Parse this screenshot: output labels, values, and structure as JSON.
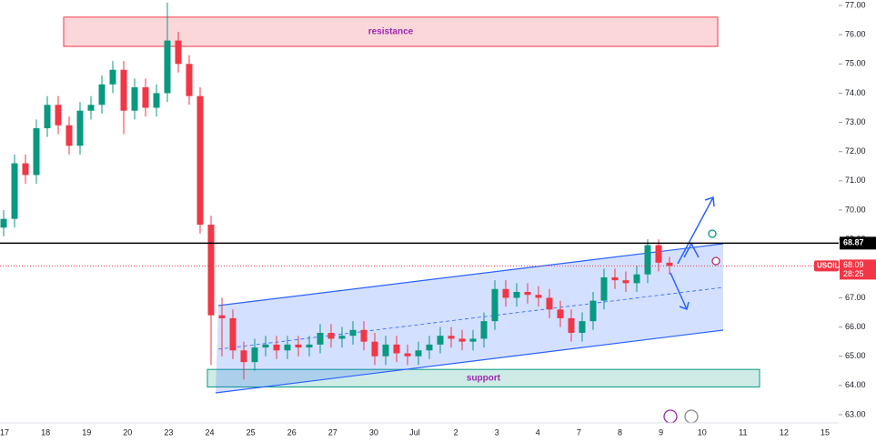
{
  "chart_data": {
    "type": "candlestick",
    "symbol": "USOIL",
    "countdown": "28:25",
    "categories": [
      "17",
      "18",
      "19",
      "20",
      "23",
      "24",
      "25",
      "26",
      "27",
      "30",
      "Jul",
      "2",
      "3",
      "4",
      "7",
      "8",
      "9",
      "10",
      "11",
      "12",
      "15"
    ],
    "ylim": [
      63,
      77
    ],
    "yticks": [
      {
        "value": 63,
        "label": "63.00"
      },
      {
        "value": 64,
        "label": "64.00"
      },
      {
        "value": 65,
        "label": "65.00"
      },
      {
        "value": 66,
        "label": "66.00"
      },
      {
        "value": 67,
        "label": "67.00"
      },
      {
        "value": 68,
        "label": "68.00"
      },
      {
        "value": 69,
        "label": "69.00"
      },
      {
        "value": 70,
        "label": "70.00"
      },
      {
        "value": 71,
        "label": "71.00"
      },
      {
        "value": 72,
        "label": "72.00"
      },
      {
        "value": 73,
        "label": "73.00"
      },
      {
        "value": 74,
        "label": "74.00"
      },
      {
        "value": 75,
        "label": "75.00"
      },
      {
        "value": 76,
        "label": "76.00"
      },
      {
        "value": 77,
        "label": "77.00"
      }
    ],
    "up_color": "#089981",
    "down_color": "#f23645",
    "open": [
      69.4,
      69.7,
      71.6,
      71.2,
      72.8,
      73.6,
      72.9,
      72.2,
      73.4,
      73.6,
      74.3,
      74.8,
      73.4,
      74.2,
      73.5,
      74.0,
      75.8,
      75.0,
      73.9,
      69.5,
      66.4,
      66.3,
      65.2,
      64.8,
      65.3,
      65.4,
      65.2,
      65.4,
      65.3,
      65.4,
      65.8,
      65.6,
      65.7,
      65.9,
      65.5,
      65.0,
      65.4,
      65.1,
      65.0,
      65.2,
      65.4,
      65.7,
      65.6,
      65.5,
      65.6,
      66.2,
      67.3,
      67.0,
      67.2,
      67.1,
      67.0,
      66.6,
      66.3,
      65.8,
      66.2,
      66.9,
      67.7,
      67.6,
      67.5,
      67.8,
      68.8,
      68.2
    ],
    "high": [
      70.0,
      71.9,
      71.9,
      73.1,
      73.9,
      73.9,
      73.2,
      73.7,
      73.9,
      74.6,
      75.1,
      75.1,
      74.5,
      74.5,
      74.3,
      77.1,
      76.1,
      75.3,
      74.2,
      69.8,
      67.0,
      66.6,
      65.5,
      65.6,
      65.7,
      65.7,
      65.7,
      65.7,
      65.7,
      66.1,
      66.1,
      66.0,
      66.2,
      66.2,
      65.8,
      65.7,
      65.7,
      65.4,
      65.5,
      65.7,
      66.0,
      66.0,
      65.9,
      65.9,
      66.5,
      67.6,
      67.6,
      67.5,
      67.5,
      67.4,
      67.3,
      66.9,
      66.6,
      66.5,
      67.2,
      68.0,
      68.0,
      67.9,
      68.1,
      69.0,
      69.0,
      68.4
    ],
    "low": [
      69.1,
      69.4,
      70.9,
      70.9,
      72.5,
      72.6,
      71.9,
      71.9,
      73.1,
      73.3,
      74.0,
      72.6,
      73.1,
      73.2,
      73.2,
      73.7,
      74.7,
      73.6,
      69.2,
      64.7,
      65.0,
      64.9,
      64.2,
      64.5,
      65.0,
      64.9,
      64.9,
      65.0,
      65.0,
      65.1,
      65.3,
      65.3,
      65.4,
      65.2,
      64.7,
      64.7,
      64.8,
      64.7,
      64.7,
      64.9,
      65.1,
      65.3,
      65.2,
      65.2,
      65.3,
      65.9,
      66.7,
      66.7,
      66.8,
      66.7,
      66.3,
      66.0,
      65.5,
      65.5,
      65.9,
      66.6,
      67.3,
      67.2,
      67.2,
      67.5,
      67.9,
      67.8
    ],
    "close": [
      69.7,
      71.6,
      71.2,
      72.8,
      73.6,
      72.9,
      72.2,
      73.4,
      73.6,
      74.3,
      74.8,
      73.4,
      74.2,
      73.5,
      74.0,
      75.8,
      75.0,
      73.9,
      69.5,
      66.4,
      66.3,
      65.2,
      64.8,
      65.3,
      65.4,
      65.2,
      65.4,
      65.3,
      65.4,
      65.8,
      65.6,
      65.7,
      65.9,
      65.5,
      65.0,
      65.4,
      65.1,
      65.0,
      65.2,
      65.4,
      65.7,
      65.6,
      65.5,
      65.6,
      66.2,
      67.3,
      67.0,
      67.2,
      67.1,
      67.0,
      66.6,
      66.3,
      65.8,
      66.2,
      66.9,
      67.7,
      67.6,
      67.5,
      67.8,
      68.8,
      68.2,
      68.09
    ],
    "hline": 68.87,
    "resistance": {
      "label": "resistance",
      "range": [
        75.6,
        76.6
      ]
    },
    "support": {
      "label": "support",
      "range": [
        63.95,
        64.55
      ]
    }
  }
}
